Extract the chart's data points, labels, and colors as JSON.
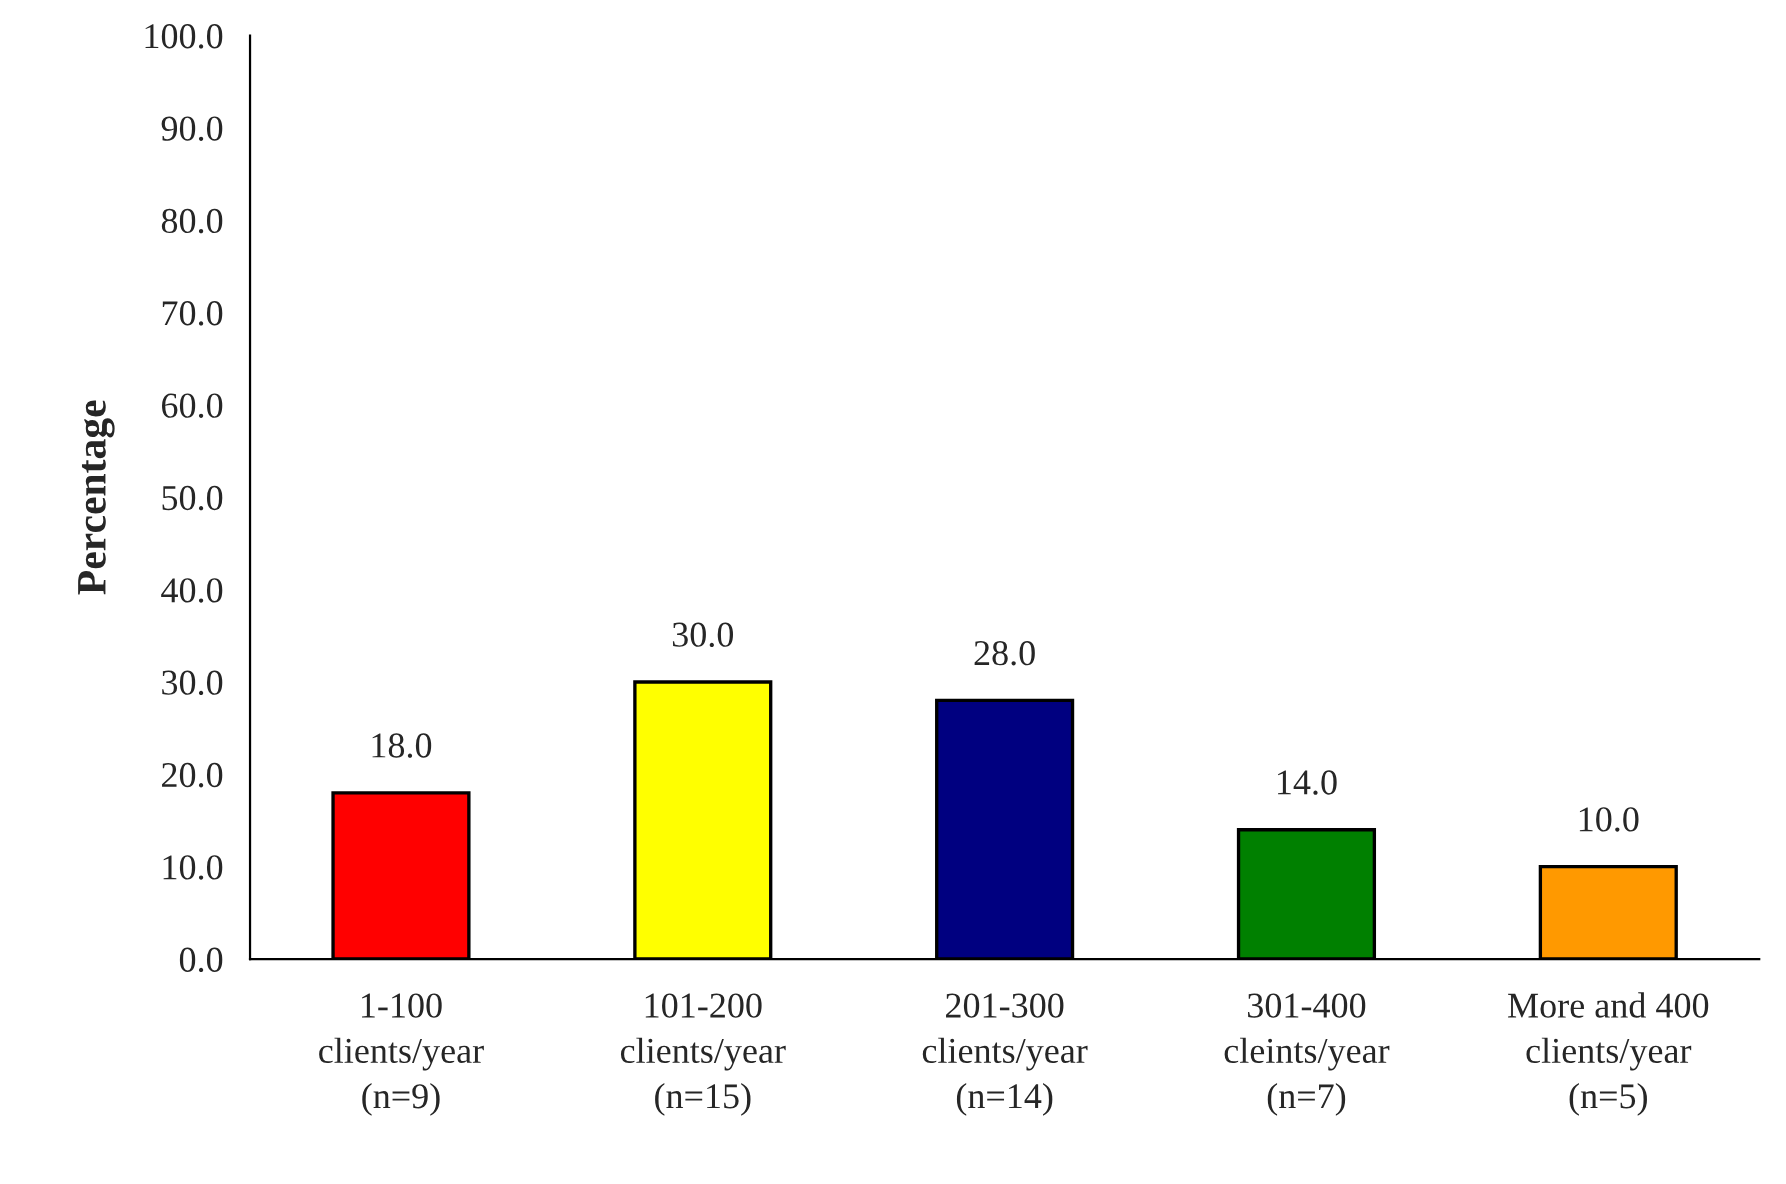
{
  "chart_data": {
    "type": "bar",
    "ylabel": "Percentage",
    "categories": [
      "1-100\nclients/year\n(n=9)",
      "101-200\nclients/year\n(n=15)",
      "201-300\nclients/year\n(n=14)",
      "301-400\ncleints/year\n(n=7)",
      "More and 400\nclients/year\n(n=5)"
    ],
    "values": [
      18.0,
      30.0,
      28.0,
      14.0,
      10.0
    ],
    "colors": [
      "#ff0000",
      "#ffff00",
      "#000080",
      "#008000",
      "#ff9900"
    ],
    "value_labels": [
      "18.0",
      "30.0",
      "28.0",
      "14.0",
      "10.0"
    ],
    "ylim": [
      0,
      100
    ],
    "yticks": [
      {
        "value": 0,
        "label": "0.0"
      },
      {
        "value": 10,
        "label": "10.0"
      },
      {
        "value": 20,
        "label": "20.0"
      },
      {
        "value": 30,
        "label": "30.0"
      },
      {
        "value": 40,
        "label": "40.0"
      },
      {
        "value": 50,
        "label": "50.0"
      },
      {
        "value": 60,
        "label": "60.0"
      },
      {
        "value": 70,
        "label": "70.0"
      },
      {
        "value": 80,
        "label": "80.0"
      },
      {
        "value": 90,
        "label": "90.0"
      },
      {
        "value": 100,
        "label": "100.0"
      }
    ],
    "grid": false,
    "legend": false
  }
}
